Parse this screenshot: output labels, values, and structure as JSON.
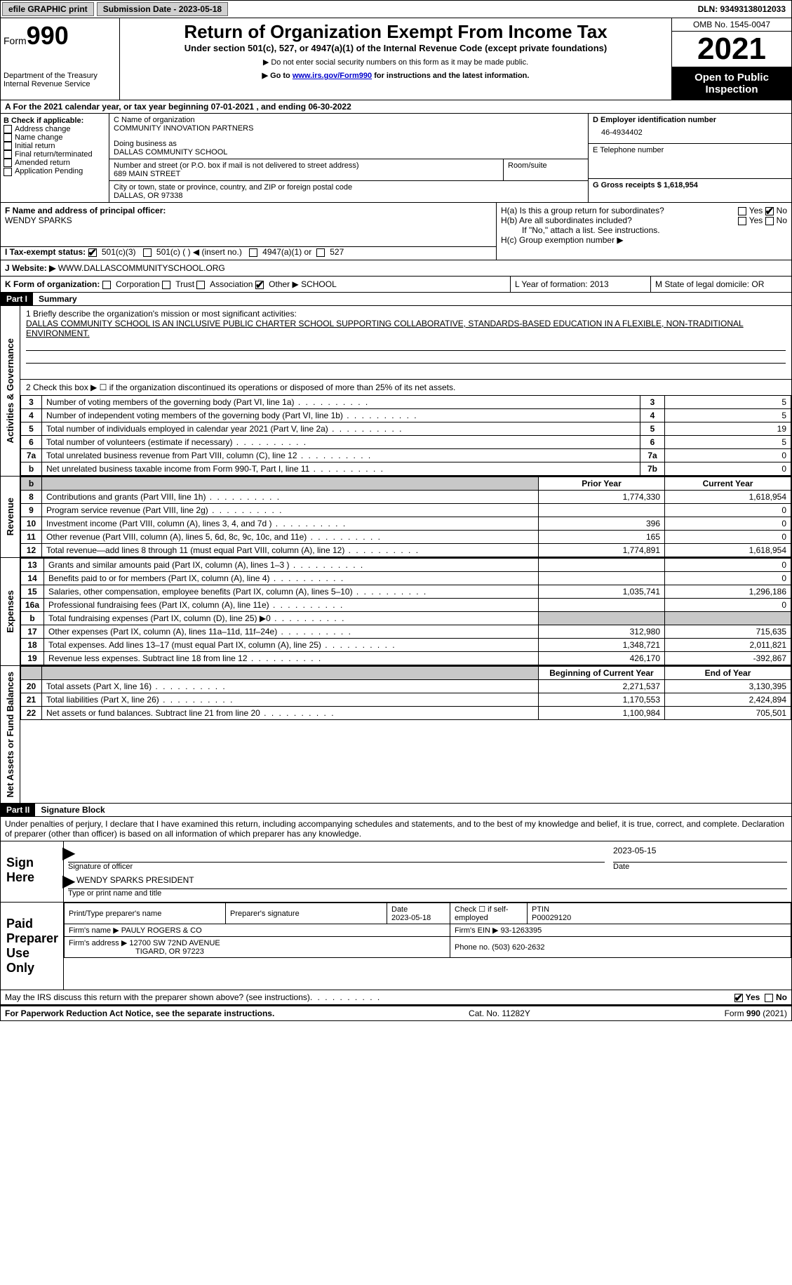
{
  "topbar": {
    "efile_btn": "efile GRAPHIC print",
    "submission_label": "Submission Date - 2023-05-18",
    "dln": "DLN: 93493138012033"
  },
  "header": {
    "form_label": "Form",
    "form_num": "990",
    "dept": "Department of the Treasury",
    "irs": "Internal Revenue Service",
    "title": "Return of Organization Exempt From Income Tax",
    "subtitle": "Under section 501(c), 527, or 4947(a)(1) of the Internal Revenue Code (except private foundations)",
    "note1": "▶ Do not enter social security numbers on this form as it may be made public.",
    "note2_pre": "▶ Go to ",
    "note2_link": "www.irs.gov/Form990",
    "note2_post": " for instructions and the latest information.",
    "omb": "OMB No. 1545-0047",
    "year": "2021",
    "public": "Open to Public Inspection"
  },
  "row_a": "A For the 2021 calendar year, or tax year beginning 07-01-2021   , and ending 06-30-2022",
  "col_b": {
    "label": "B Check if applicable:",
    "items": [
      "Address change",
      "Name change",
      "Initial return",
      "Final return/terminated",
      "Amended return",
      "Application Pending"
    ]
  },
  "col_c": {
    "name_label": "C Name of organization",
    "name": "COMMUNITY INNOVATION PARTNERS",
    "dba_label": "Doing business as",
    "dba": "DALLAS COMMUNITY SCHOOL",
    "street_label": "Number and street (or P.O. box if mail is not delivered to street address)",
    "street": "689 MAIN STREET",
    "room_label": "Room/suite",
    "city_label": "City or town, state or province, country, and ZIP or foreign postal code",
    "city": "DALLAS, OR  97338"
  },
  "col_d": {
    "ein_label": "D Employer identification number",
    "ein": "46-4934402",
    "phone_label": "E Telephone number",
    "receipts_label": "G Gross receipts $ 1,618,954"
  },
  "row_f": {
    "label": "F  Name and address of principal officer:",
    "name": "WENDY SPARKS"
  },
  "row_h": {
    "ha": "H(a)  Is this a group return for subordinates?",
    "hb": "H(b)  Are all subordinates included?",
    "hb_note": "If \"No,\" attach a list. See instructions.",
    "hc": "H(c)  Group exemption number ▶",
    "yes": "Yes",
    "no": "No"
  },
  "row_i": {
    "label": "I   Tax-exempt status:",
    "opt1": "501(c)(3)",
    "opt2": "501(c) (  ) ◀ (insert no.)",
    "opt3": "4947(a)(1) or",
    "opt4": "527"
  },
  "row_j": {
    "label": "J   Website: ▶",
    "value": " WWW.DALLASCOMMUNITYSCHOOL.ORG"
  },
  "row_k": {
    "label": "K Form of organization:",
    "corp": "Corporation",
    "trust": "Trust",
    "assoc": "Association",
    "other": "Other ▶",
    "other_val": "SCHOOL",
    "l_label": "L Year of formation: 2013",
    "m_label": "M State of legal domicile: OR"
  },
  "part1": {
    "header": "Part I",
    "title": "Summary",
    "sections": {
      "gov": "Activities & Governance",
      "rev": "Revenue",
      "exp": "Expenses",
      "net": "Net Assets or Fund Balances"
    },
    "line1_label": "1  Briefly describe the organization's mission or most significant activities:",
    "line1_text": "DALLAS COMMUNITY SCHOOL IS AN INCLUSIVE PUBLIC CHARTER SCHOOL SUPPORTING COLLABORATIVE, STANDARDS-BASED EDUCATION IN A FLEXIBLE, NON-TRADITIONAL ENVIRONMENT.",
    "line2": "2   Check this box ▶ ☐  if the organization discontinued its operations or disposed of more than 25% of its net assets.",
    "rows_gov": [
      {
        "n": "3",
        "d": "Number of voting members of the governing body (Part VI, line 1a)",
        "box": "3",
        "v": "5"
      },
      {
        "n": "4",
        "d": "Number of independent voting members of the governing body (Part VI, line 1b)",
        "box": "4",
        "v": "5"
      },
      {
        "n": "5",
        "d": "Total number of individuals employed in calendar year 2021 (Part V, line 2a)",
        "box": "5",
        "v": "19"
      },
      {
        "n": "6",
        "d": "Total number of volunteers (estimate if necessary)",
        "box": "6",
        "v": "5"
      },
      {
        "n": "7a",
        "d": "Total unrelated business revenue from Part VIII, column (C), line 12",
        "box": "7a",
        "v": "0"
      },
      {
        "n": "b",
        "d": "Net unrelated business taxable income from Form 990-T, Part I, line 11",
        "box": "7b",
        "v": "0"
      }
    ],
    "col_headers": {
      "prior": "Prior Year",
      "current": "Current Year"
    },
    "rows_rev": [
      {
        "n": "8",
        "d": "Contributions and grants (Part VIII, line 1h)",
        "p": "1,774,330",
        "c": "1,618,954"
      },
      {
        "n": "9",
        "d": "Program service revenue (Part VIII, line 2g)",
        "p": "",
        "c": "0"
      },
      {
        "n": "10",
        "d": "Investment income (Part VIII, column (A), lines 3, 4, and 7d )",
        "p": "396",
        "c": "0"
      },
      {
        "n": "11",
        "d": "Other revenue (Part VIII, column (A), lines 5, 6d, 8c, 9c, 10c, and 11e)",
        "p": "165",
        "c": "0"
      },
      {
        "n": "12",
        "d": "Total revenue—add lines 8 through 11 (must equal Part VIII, column (A), line 12)",
        "p": "1,774,891",
        "c": "1,618,954"
      }
    ],
    "rows_exp": [
      {
        "n": "13",
        "d": "Grants and similar amounts paid (Part IX, column (A), lines 1–3 )",
        "p": "",
        "c": "0"
      },
      {
        "n": "14",
        "d": "Benefits paid to or for members (Part IX, column (A), line 4)",
        "p": "",
        "c": "0"
      },
      {
        "n": "15",
        "d": "Salaries, other compensation, employee benefits (Part IX, column (A), lines 5–10)",
        "p": "1,035,741",
        "c": "1,296,186"
      },
      {
        "n": "16a",
        "d": "Professional fundraising fees (Part IX, column (A), line 11e)",
        "p": "",
        "c": "0"
      },
      {
        "n": "b",
        "d": "Total fundraising expenses (Part IX, column (D), line 25) ▶0",
        "p": "shade",
        "c": "shade"
      },
      {
        "n": "17",
        "d": "Other expenses (Part IX, column (A), lines 11a–11d, 11f–24e)",
        "p": "312,980",
        "c": "715,635"
      },
      {
        "n": "18",
        "d": "Total expenses. Add lines 13–17 (must equal Part IX, column (A), line 25)",
        "p": "1,348,721",
        "c": "2,011,821"
      },
      {
        "n": "19",
        "d": "Revenue less expenses. Subtract line 18 from line 12",
        "p": "426,170",
        "c": "-392,867"
      }
    ],
    "net_headers": {
      "beg": "Beginning of Current Year",
      "end": "End of Year"
    },
    "rows_net": [
      {
        "n": "20",
        "d": "Total assets (Part X, line 16)",
        "p": "2,271,537",
        "c": "3,130,395"
      },
      {
        "n": "21",
        "d": "Total liabilities (Part X, line 26)",
        "p": "1,170,553",
        "c": "2,424,894"
      },
      {
        "n": "22",
        "d": "Net assets or fund balances. Subtract line 21 from line 20",
        "p": "1,100,984",
        "c": "705,501"
      }
    ]
  },
  "part2": {
    "header": "Part II",
    "title": "Signature Block",
    "perjury": "Under penalties of perjury, I declare that I have examined this return, including accompanying schedules and statements, and to the best of my knowledge and belief, it is true, correct, and complete. Declaration of preparer (other than officer) is based on all information of which preparer has any knowledge.",
    "sign_here": "Sign Here",
    "sig_officer": "Signature of officer",
    "sig_date": "2023-05-15",
    "date_label": "Date",
    "typed_name": "WENDY SPARKS PRESIDENT",
    "typed_label": "Type or print name and title",
    "paid_prep": "Paid Preparer Use Only",
    "prep_name_label": "Print/Type preparer's name",
    "prep_sig_label": "Preparer's signature",
    "prep_date_label": "Date",
    "prep_date": "2023-05-18",
    "self_emp": "Check ☐ if self-employed",
    "ptin_label": "PTIN",
    "ptin": "P00029120",
    "firm_name_label": "Firm's name    ▶",
    "firm_name": "PAULY ROGERS & CO",
    "firm_ein_label": "Firm's EIN ▶",
    "firm_ein": "93-1263395",
    "firm_addr_label": "Firm's address ▶",
    "firm_addr1": "12700 SW 72ND AVENUE",
    "firm_addr2": "TIGARD, OR  97223",
    "phone_label": "Phone no.",
    "phone": "(503) 620-2632",
    "may_irs": "May the IRS discuss this return with the preparer shown above? (see instructions)",
    "paperwork": "For Paperwork Reduction Act Notice, see the separate instructions.",
    "cat": "Cat. No. 11282Y",
    "form_foot": "Form 990 (2021)"
  },
  "colors": {
    "link": "#0000cc",
    "black": "#000000",
    "grey_btn": "#d0d0d0",
    "shade": "#c8c8c8"
  }
}
